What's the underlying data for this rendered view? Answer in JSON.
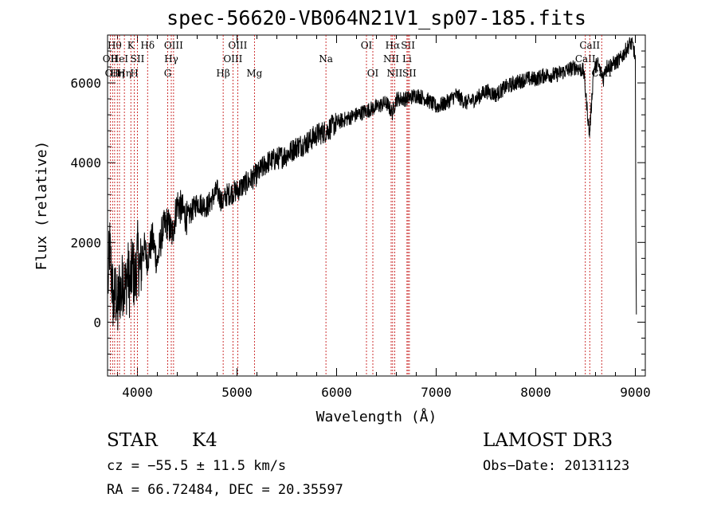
{
  "chart_data": {
    "type": "line",
    "title": "spec-56620-VB064N21V1_sp07-185.fits",
    "xlabel": "Wavelength (Å)",
    "ylabel": "Flux (relative)",
    "xlim": [
      3700,
      9100
    ],
    "ylim": [
      -1350,
      7200
    ],
    "xticks": [
      4000,
      5000,
      6000,
      7000,
      8000,
      9000
    ],
    "yticks": [
      0,
      2000,
      4000,
      6000
    ],
    "series": [
      {
        "name": "flux",
        "x": [
          3705,
          3720,
          3740,
          3760,
          3780,
          3800,
          3820,
          3840,
          3860,
          3880,
          3900,
          3925,
          3950,
          3975,
          4000,
          4030,
          4060,
          4100,
          4150,
          4200,
          4250,
          4300,
          4350,
          4400,
          4450,
          4500,
          4600,
          4700,
          4800,
          4850,
          4900,
          5000,
          5100,
          5200,
          5300,
          5400,
          5500,
          5600,
          5700,
          5800,
          5900,
          6000,
          6100,
          6200,
          6300,
          6400,
          6500,
          6560,
          6600,
          6700,
          6800,
          6900,
          7000,
          7100,
          7200,
          7300,
          7400,
          7500,
          7600,
          7700,
          7800,
          7900,
          8000,
          8100,
          8200,
          8300,
          8400,
          8480,
          8540,
          8580,
          8620,
          8680,
          8700,
          8800,
          8850,
          8900,
          8950,
          8980,
          9000,
          9005,
          9010
        ],
        "y": [
          900,
          1900,
          1200,
          400,
          800,
          200,
          900,
          700,
          1200,
          800,
          1300,
          900,
          1400,
          1000,
          1700,
          1300,
          1900,
          1600,
          2100,
          1500,
          2300,
          2500,
          2200,
          3000,
          2800,
          2600,
          3000,
          2900,
          3300,
          3000,
          3200,
          3300,
          3500,
          3700,
          4000,
          4100,
          4200,
          4400,
          4500,
          4700,
          4800,
          5000,
          5100,
          5200,
          5300,
          5400,
          5500,
          5250,
          5600,
          5600,
          5700,
          5600,
          5400,
          5500,
          5700,
          5500,
          5600,
          5800,
          5700,
          5900,
          6000,
          6100,
          6100,
          6200,
          6200,
          6300,
          6400,
          6300,
          4700,
          6300,
          6500,
          6100,
          6400,
          6500,
          6600,
          6800,
          7000,
          6900,
          6600,
          2500,
          0
        ]
      }
    ],
    "lines": [
      {
        "w": 3727,
        "row": 1,
        "text": "OII"
      },
      {
        "w": 3750,
        "row": 2,
        "text": "OII"
      },
      {
        "w": 3771,
        "row": 0,
        "text": "Hθ"
      },
      {
        "w": 3798,
        "row": 2,
        "text": "Hη"
      },
      {
        "w": 3820,
        "row": 1,
        "text": "HeI"
      },
      {
        "w": 3869,
        "row": 2,
        "text": "Hη"
      },
      {
        "w": 3934,
        "row": 0,
        "text": "K"
      },
      {
        "w": 3969,
        "row": 2,
        "text": "H"
      },
      {
        "w": 4000,
        "row": 1,
        "text": "SII"
      },
      {
        "w": 4102,
        "row": 0,
        "text": "Hδ"
      },
      {
        "w": 4304,
        "row": 2,
        "text": "G"
      },
      {
        "w": 4340,
        "row": 1,
        "text": "Hγ"
      },
      {
        "w": 4363,
        "row": 0,
        "text": "OIII"
      },
      {
        "w": 4861,
        "row": 2,
        "text": "Hβ"
      },
      {
        "w": 4959,
        "row": 1,
        "text": "OIII"
      },
      {
        "w": 5007,
        "row": 0,
        "text": "OIII"
      },
      {
        "w": 5175,
        "row": 2,
        "text": "Mg"
      },
      {
        "w": 5893,
        "row": 1,
        "text": "Na"
      },
      {
        "w": 6300,
        "row": 0,
        "text": "OI"
      },
      {
        "w": 6364,
        "row": 2,
        "text": "OI"
      },
      {
        "w": 6548,
        "row": 1,
        "text": "NII"
      },
      {
        "w": 6563,
        "row": 0,
        "text": "Hα"
      },
      {
        "w": 6583,
        "row": 2,
        "text": "NII"
      },
      {
        "w": 6707,
        "row": 1,
        "text": "Li"
      },
      {
        "w": 6717,
        "row": 0,
        "text": "SII"
      },
      {
        "w": 6731,
        "row": 2,
        "text": "SII"
      },
      {
        "w": 8498,
        "row": 1,
        "text": "CaII"
      },
      {
        "w": 8542,
        "row": 0,
        "text": "CaII"
      },
      {
        "w": 8662,
        "row": 2,
        "text": "CaII"
      }
    ]
  },
  "footer": {
    "object_class": "STAR",
    "subclass": "K4",
    "survey": "LAMOST DR3",
    "redshift": "cz = −55.5 ± 11.5 km/s",
    "obs_date": "Obs−Date: 20131123",
    "coords": "RA =  66.72484, DEC =  20.35597"
  }
}
